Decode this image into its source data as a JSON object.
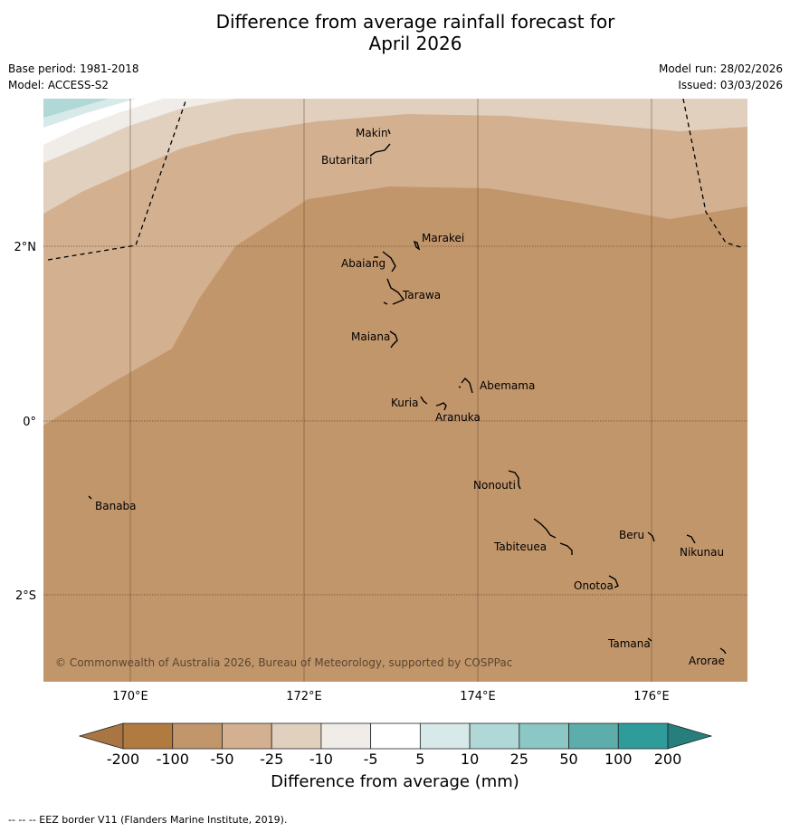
{
  "title_line1": "Difference from average rainfall forecast for",
  "title_line2": "April 2026",
  "base_period": "Base period: 1981-2018",
  "model": "Model: ACCESS-S2",
  "model_run": "Model run: 28/02/2026",
  "issued": "Issued: 03/03/2026",
  "copyright": "© Commonwealth of Australia 2026, Bureau of Meteorology, supported by COSPPac",
  "lat_labels": [
    "2°N",
    "0°",
    "2°S"
  ],
  "lon_labels": [
    "170°E",
    "172°E",
    "174°E",
    "176°E"
  ],
  "places": [
    "Makin",
    "Butaritari",
    "Marakei",
    "Abaiang",
    "Tarawa",
    "Maiana",
    "Abemama",
    "Kuria",
    "Aranuka",
    "Nonouti",
    "Banaba",
    "Tabiteuea",
    "Beru",
    "Nikunau",
    "Onotoa",
    "Tamana",
    "Arorae"
  ],
  "legend": {
    "title": "Difference from average (mm)",
    "ticks": [
      "-200",
      "-100",
      "-50",
      "-25",
      "-10",
      "-5",
      "5",
      "10",
      "25",
      "50",
      "100",
      "200"
    ],
    "colors": [
      "#a97643",
      "#b07a41",
      "#c2966b",
      "#d3b190",
      "#e2d0bf",
      "#f0ece8",
      "#ffffff",
      "#d7eae9",
      "#b0d8d7",
      "#8ac7c5",
      "#5dadab",
      "#309c9a",
      "#267f7d"
    ]
  },
  "footnote": "--  --  -- EEZ border V11 (Flanders Marine Institute, 2019)."
}
